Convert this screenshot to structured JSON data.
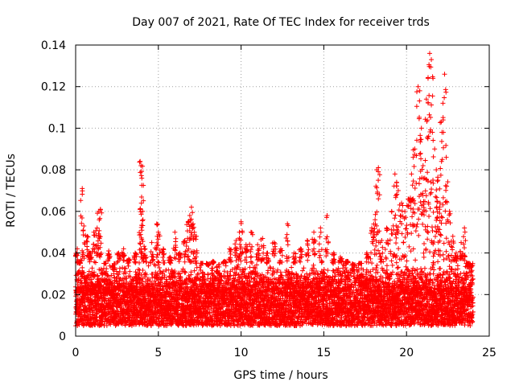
{
  "chart_data": {
    "type": "scatter",
    "title": "Day 007 of 2021, Rate Of TEC Index for receiver trds",
    "xlabel": "GPS time / hours",
    "ylabel": "ROTI / TECUs",
    "xlim": [
      0,
      25
    ],
    "ylim": [
      0,
      0.14
    ],
    "x_ticks": [
      0,
      5,
      10,
      15,
      20,
      25
    ],
    "x_tick_labels": [
      "0",
      "5",
      "10",
      "15",
      "20",
      "25"
    ],
    "y_ticks": [
      0,
      0.02,
      0.04,
      0.06,
      0.08,
      0.1,
      0.12,
      0.14
    ],
    "y_tick_labels": [
      "0",
      "0.02",
      "0.04",
      "0.06",
      "0.08",
      "0.1",
      "0.12",
      "0.14"
    ],
    "grid": true,
    "marker": "+",
    "marker_color": "#ff0000",
    "data_range": {
      "x_min": 0,
      "x_max": 24,
      "baseline_min": 0.005,
      "baseline_max": 0.035
    },
    "series": [
      {
        "name": "ROTI",
        "points": [
          [
            0.1,
            0.042
          ],
          [
            0.2,
            0.036
          ],
          [
            0.4,
            0.071
          ],
          [
            0.5,
            0.053
          ],
          [
            0.7,
            0.048
          ],
          [
            0.9,
            0.04
          ],
          [
            1.1,
            0.05
          ],
          [
            1.3,
            0.052
          ],
          [
            1.4,
            0.06
          ],
          [
            1.5,
            0.061
          ],
          [
            1.8,
            0.035
          ],
          [
            2.0,
            0.041
          ],
          [
            2.3,
            0.032
          ],
          [
            2.6,
            0.04
          ],
          [
            2.9,
            0.042
          ],
          [
            3.2,
            0.037
          ],
          [
            3.6,
            0.04
          ],
          [
            3.9,
            0.084
          ],
          [
            3.95,
            0.082
          ],
          [
            4.0,
            0.076
          ],
          [
            4.05,
            0.06
          ],
          [
            4.2,
            0.042
          ],
          [
            4.6,
            0.045
          ],
          [
            4.9,
            0.054
          ],
          [
            5.0,
            0.05
          ],
          [
            5.3,
            0.042
          ],
          [
            5.7,
            0.038
          ],
          [
            6.0,
            0.05
          ],
          [
            6.3,
            0.04
          ],
          [
            6.6,
            0.046
          ],
          [
            6.8,
            0.055
          ],
          [
            6.9,
            0.058
          ],
          [
            7.0,
            0.062
          ],
          [
            7.1,
            0.054
          ],
          [
            7.3,
            0.048
          ],
          [
            7.6,
            0.035
          ],
          [
            8.0,
            0.034
          ],
          [
            8.3,
            0.036
          ],
          [
            8.6,
            0.03
          ],
          [
            9.0,
            0.036
          ],
          [
            9.3,
            0.042
          ],
          [
            9.7,
            0.046
          ],
          [
            9.9,
            0.05
          ],
          [
            10.0,
            0.055
          ],
          [
            10.3,
            0.044
          ],
          [
            10.6,
            0.05
          ],
          [
            11.0,
            0.044
          ],
          [
            11.3,
            0.047
          ],
          [
            11.6,
            0.04
          ],
          [
            12.0,
            0.045
          ],
          [
            12.4,
            0.042
          ],
          [
            12.8,
            0.054
          ],
          [
            13.2,
            0.04
          ],
          [
            13.6,
            0.042
          ],
          [
            14.0,
            0.046
          ],
          [
            14.4,
            0.05
          ],
          [
            14.8,
            0.052
          ],
          [
            15.2,
            0.058
          ],
          [
            15.6,
            0.04
          ],
          [
            16.0,
            0.038
          ],
          [
            16.4,
            0.036
          ],
          [
            16.8,
            0.032
          ],
          [
            17.2,
            0.035
          ],
          [
            17.6,
            0.04
          ],
          [
            17.9,
            0.052
          ],
          [
            18.1,
            0.056
          ],
          [
            18.2,
            0.08
          ],
          [
            18.3,
            0.081
          ],
          [
            18.5,
            0.046
          ],
          [
            18.8,
            0.052
          ],
          [
            19.1,
            0.06
          ],
          [
            19.3,
            0.078
          ],
          [
            19.4,
            0.074
          ],
          [
            19.5,
            0.07
          ],
          [
            19.7,
            0.064
          ],
          [
            19.9,
            0.06
          ],
          [
            20.1,
            0.066
          ],
          [
            20.3,
            0.078
          ],
          [
            20.4,
            0.086
          ],
          [
            20.5,
            0.09
          ],
          [
            20.7,
            0.12
          ],
          [
            20.8,
            0.118
          ],
          [
            20.9,
            0.1
          ],
          [
            21.0,
            0.082
          ],
          [
            21.1,
            0.076
          ],
          [
            21.2,
            0.114
          ],
          [
            21.3,
            0.124
          ],
          [
            21.4,
            0.136
          ],
          [
            21.5,
            0.133
          ],
          [
            21.6,
            0.124
          ],
          [
            21.7,
            0.09
          ],
          [
            21.8,
            0.08
          ],
          [
            21.9,
            0.075
          ],
          [
            22.0,
            0.061
          ],
          [
            22.1,
            0.103
          ],
          [
            22.2,
            0.112
          ],
          [
            22.3,
            0.126
          ],
          [
            22.4,
            0.086
          ],
          [
            22.6,
            0.06
          ],
          [
            22.8,
            0.048
          ],
          [
            23.0,
            0.04
          ],
          [
            23.3,
            0.045
          ],
          [
            23.5,
            0.052
          ],
          [
            23.7,
            0.035
          ],
          [
            23.9,
            0.033
          ]
        ]
      }
    ]
  }
}
